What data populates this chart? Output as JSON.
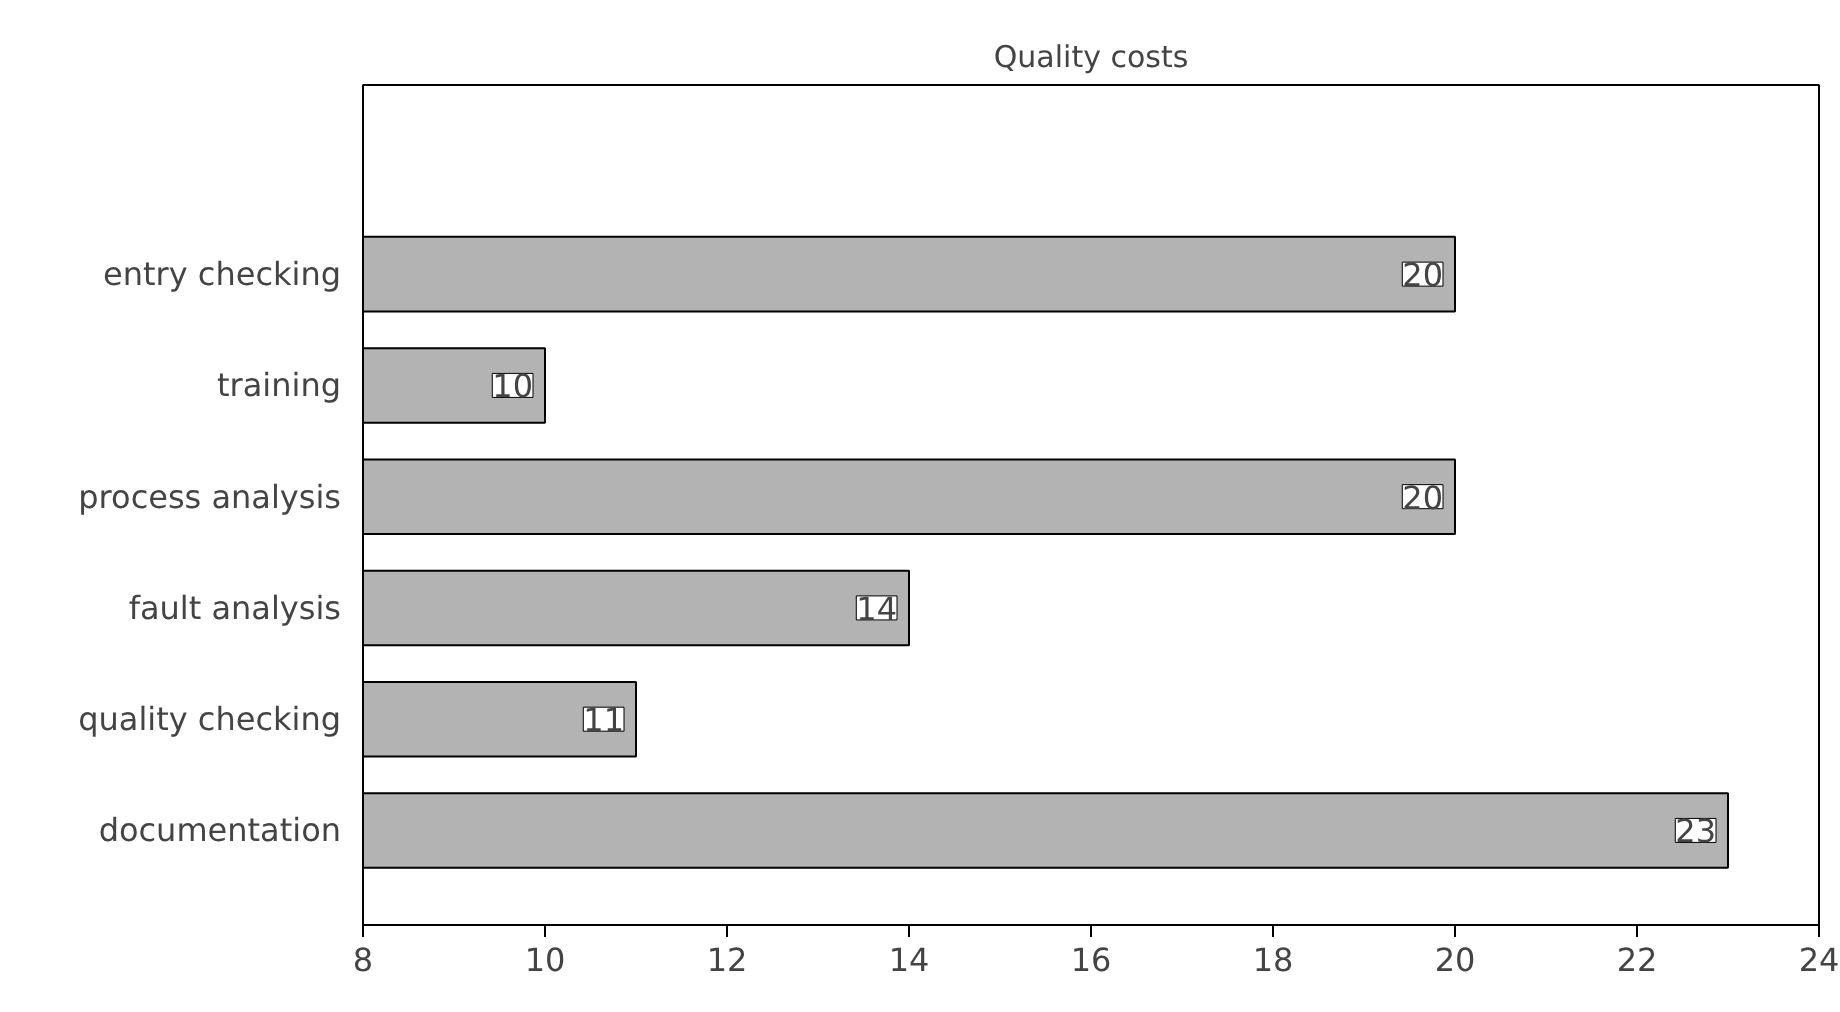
{
  "chart_data": {
    "type": "bar",
    "orientation": "horizontal",
    "title": "Quality costs",
    "categories": [
      "entry checking",
      "training",
      "process analysis",
      "fault analysis",
      "quality checking",
      "documentation"
    ],
    "values": [
      20,
      10,
      20,
      14,
      11,
      23
    ],
    "color": "#b3b3b3",
    "xlim": [
      8,
      24
    ],
    "xticks": [
      8,
      10,
      12,
      14,
      16,
      18,
      20,
      22,
      24
    ],
    "data_labels": true,
    "grid": false
  }
}
